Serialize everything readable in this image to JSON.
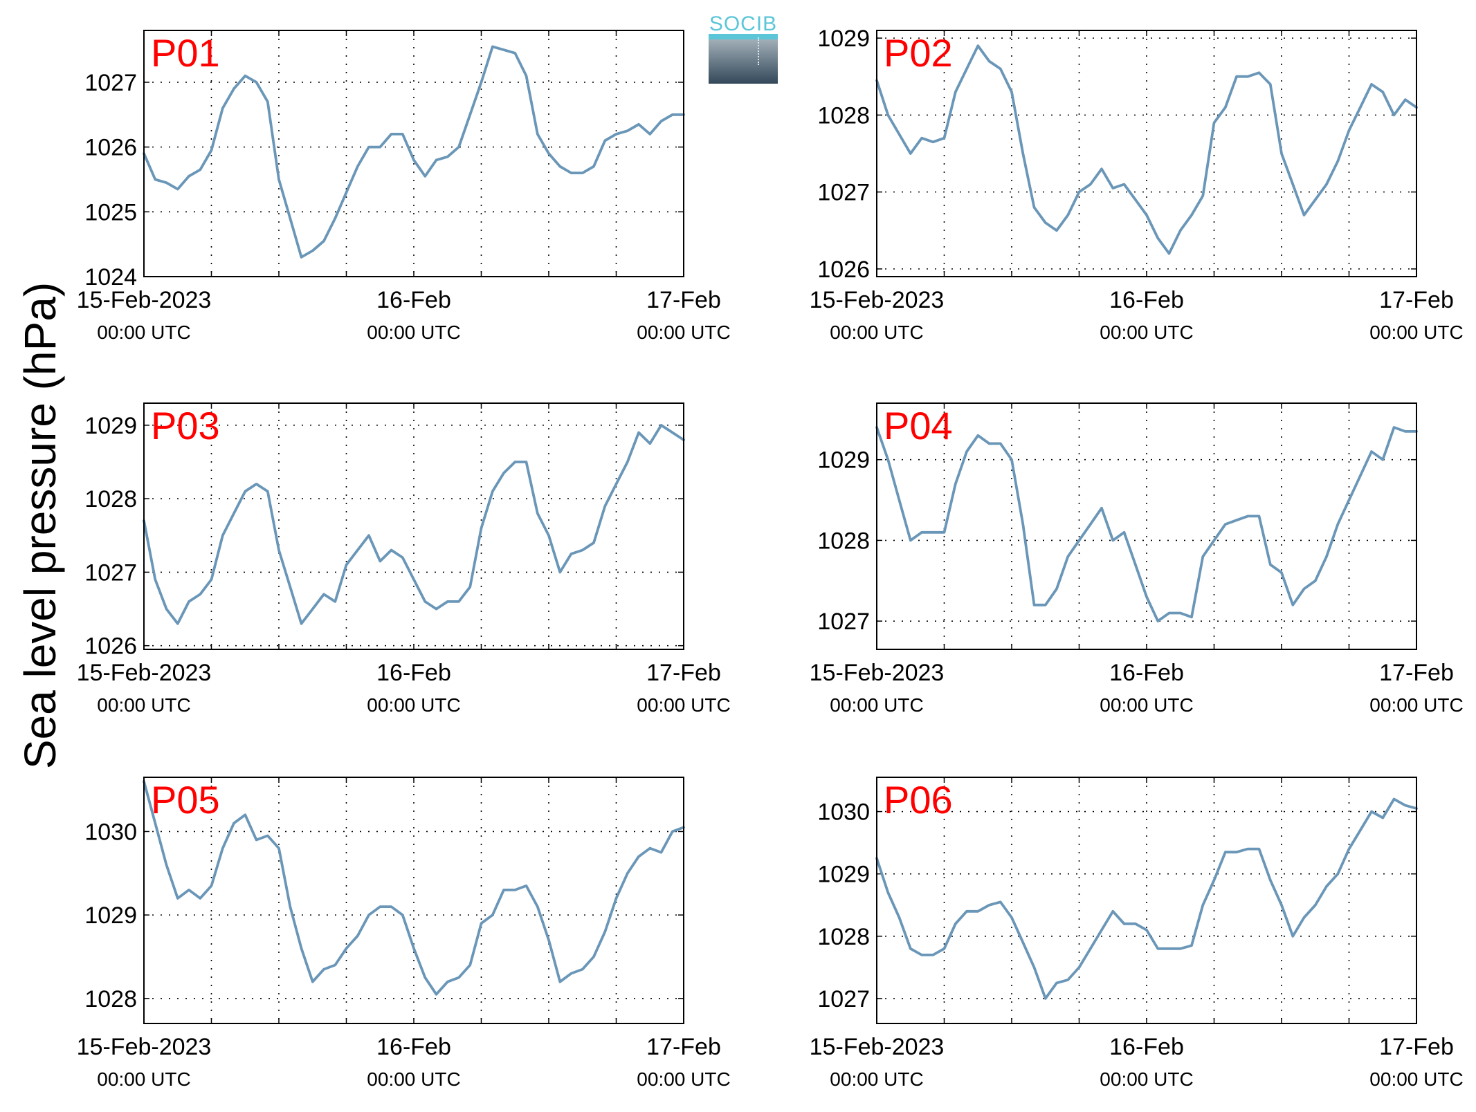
{
  "figure": {
    "ylabel": "Sea level pressure (hPa)",
    "logo_text": "SOCIB",
    "line_color": "#6a96b8",
    "panel_label_color": "#ff0000"
  },
  "chart_data": [
    {
      "type": "line",
      "title": "P01",
      "xlim_hours": [
        0,
        48
      ],
      "xticks": [
        {
          "label": "15-Feb-2023",
          "sub": "00:00 UTC"
        },
        {
          "label": "16-Feb",
          "sub": "00:00 UTC"
        },
        {
          "label": "17-Feb",
          "sub": "00:00 UTC"
        }
      ],
      "ylim": [
        1024,
        1027.8
      ],
      "yticks": [
        1024,
        1025,
        1026,
        1027
      ],
      "x_hours": [
        0,
        1,
        2,
        3,
        4,
        5,
        6,
        7,
        8,
        9,
        10,
        11,
        12,
        13,
        14,
        15,
        16,
        17,
        18,
        19,
        20,
        21,
        22,
        23,
        24,
        25,
        26,
        27,
        28,
        29,
        30,
        31,
        32,
        33,
        34,
        35,
        36,
        37,
        38,
        39,
        40,
        41,
        42,
        43,
        44,
        45,
        46,
        47,
        48
      ],
      "values": [
        1025.9,
        1025.5,
        1025.45,
        1025.35,
        1025.55,
        1025.65,
        1025.95,
        1026.6,
        1026.9,
        1027.1,
        1027.0,
        1026.7,
        1025.5,
        1024.9,
        1024.3,
        1024.4,
        1024.55,
        1024.9,
        1025.3,
        1025.7,
        1026.0,
        1026.0,
        1026.2,
        1026.2,
        1025.8,
        1025.55,
        1025.8,
        1025.85,
        1026.0,
        1026.5,
        1027.0,
        1027.55,
        1027.5,
        1027.45,
        1027.1,
        1026.2,
        1025.9,
        1025.7,
        1025.6,
        1025.6,
        1025.7,
        1026.1,
        1026.2,
        1026.25,
        1026.35,
        1026.2,
        1026.4,
        1026.5,
        1026.5
      ]
    },
    {
      "type": "line",
      "title": "P02",
      "xlim_hours": [
        0,
        48
      ],
      "xticks": [
        {
          "label": "15-Feb-2023",
          "sub": "00:00 UTC"
        },
        {
          "label": "16-Feb",
          "sub": "00:00 UTC"
        },
        {
          "label": "17-Feb",
          "sub": "00:00 UTC"
        }
      ],
      "ylim": [
        1025.9,
        1029.1
      ],
      "yticks": [
        1026,
        1027,
        1028,
        1029
      ],
      "x_hours": [
        0,
        1,
        2,
        3,
        4,
        5,
        6,
        7,
        8,
        9,
        10,
        11,
        12,
        13,
        14,
        15,
        16,
        17,
        18,
        19,
        20,
        21,
        22,
        23,
        24,
        25,
        26,
        27,
        28,
        29,
        30,
        31,
        32,
        33,
        34,
        35,
        36,
        37,
        38,
        39,
        40,
        41,
        42,
        43,
        44,
        45,
        46,
        47,
        48
      ],
      "values": [
        1028.45,
        1028.0,
        1027.75,
        1027.5,
        1027.7,
        1027.65,
        1027.7,
        1028.3,
        1028.6,
        1028.9,
        1028.7,
        1028.6,
        1028.3,
        1027.5,
        1026.8,
        1026.6,
        1026.5,
        1026.7,
        1027.0,
        1027.1,
        1027.3,
        1027.05,
        1027.1,
        1026.9,
        1026.7,
        1026.4,
        1026.2,
        1026.5,
        1026.7,
        1026.95,
        1027.9,
        1028.1,
        1028.5,
        1028.5,
        1028.55,
        1028.4,
        1027.5,
        1027.1,
        1026.7,
        1026.9,
        1027.1,
        1027.4,
        1027.8,
        1028.1,
        1028.4,
        1028.3,
        1028.0,
        1028.2,
        1028.1
      ]
    },
    {
      "type": "line",
      "title": "P03",
      "xlim_hours": [
        0,
        48
      ],
      "xticks": [
        {
          "label": "15-Feb-2023",
          "sub": "00:00 UTC"
        },
        {
          "label": "16-Feb",
          "sub": "00:00 UTC"
        },
        {
          "label": "17-Feb",
          "sub": "00:00 UTC"
        }
      ],
      "ylim": [
        1025.95,
        1029.3
      ],
      "yticks": [
        1026,
        1027,
        1028,
        1029
      ],
      "x_hours": [
        0,
        1,
        2,
        3,
        4,
        5,
        6,
        7,
        8,
        9,
        10,
        11,
        12,
        13,
        14,
        15,
        16,
        17,
        18,
        19,
        20,
        21,
        22,
        23,
        24,
        25,
        26,
        27,
        28,
        29,
        30,
        31,
        32,
        33,
        34,
        35,
        36,
        37,
        38,
        39,
        40,
        41,
        42,
        43,
        44,
        45,
        46,
        47,
        48
      ],
      "values": [
        1027.7,
        1026.9,
        1026.5,
        1026.3,
        1026.6,
        1026.7,
        1026.9,
        1027.5,
        1027.8,
        1028.1,
        1028.2,
        1028.1,
        1027.3,
        1026.8,
        1026.3,
        1026.5,
        1026.7,
        1026.6,
        1027.1,
        1027.3,
        1027.5,
        1027.15,
        1027.3,
        1027.2,
        1026.9,
        1026.6,
        1026.5,
        1026.6,
        1026.6,
        1026.8,
        1027.6,
        1028.1,
        1028.35,
        1028.5,
        1028.5,
        1027.8,
        1027.5,
        1027.0,
        1027.25,
        1027.3,
        1027.4,
        1027.9,
        1028.2,
        1028.5,
        1028.9,
        1028.75,
        1029.0,
        1028.9,
        1028.8
      ]
    },
    {
      "type": "line",
      "title": "P04",
      "xlim_hours": [
        0,
        48
      ],
      "xticks": [
        {
          "label": "15-Feb-2023",
          "sub": "00:00 UTC"
        },
        {
          "label": "16-Feb",
          "sub": "00:00 UTC"
        },
        {
          "label": "17-Feb",
          "sub": "00:00 UTC"
        }
      ],
      "ylim": [
        1026.65,
        1029.7
      ],
      "yticks": [
        1027,
        1028,
        1029
      ],
      "x_hours": [
        0,
        1,
        2,
        3,
        4,
        5,
        6,
        7,
        8,
        9,
        10,
        11,
        12,
        13,
        14,
        15,
        16,
        17,
        18,
        19,
        20,
        21,
        22,
        23,
        24,
        25,
        26,
        27,
        28,
        29,
        30,
        31,
        32,
        33,
        34,
        35,
        36,
        37,
        38,
        39,
        40,
        41,
        42,
        43,
        44,
        45,
        46,
        47,
        48
      ],
      "values": [
        1029.4,
        1029.0,
        1028.5,
        1028.0,
        1028.1,
        1028.1,
        1028.1,
        1028.7,
        1029.1,
        1029.3,
        1029.2,
        1029.2,
        1029.0,
        1028.2,
        1027.2,
        1027.2,
        1027.4,
        1027.8,
        1028.0,
        1028.2,
        1028.4,
        1028.0,
        1028.1,
        1027.7,
        1027.3,
        1027.0,
        1027.1,
        1027.1,
        1027.05,
        1027.8,
        1028.0,
        1028.2,
        1028.25,
        1028.3,
        1028.3,
        1027.7,
        1027.6,
        1027.2,
        1027.4,
        1027.5,
        1027.8,
        1028.2,
        1028.5,
        1028.8,
        1029.1,
        1029.0,
        1029.4,
        1029.35,
        1029.35
      ]
    },
    {
      "type": "line",
      "title": "P05",
      "xlim_hours": [
        0,
        48
      ],
      "xticks": [
        {
          "label": "15-Feb-2023",
          "sub": "00:00 UTC"
        },
        {
          "label": "16-Feb",
          "sub": "00:00 UTC"
        },
        {
          "label": "17-Feb",
          "sub": "00:00 UTC"
        }
      ],
      "ylim": [
        1027.7,
        1030.65
      ],
      "yticks": [
        1028,
        1029,
        1030
      ],
      "x_hours": [
        0,
        1,
        2,
        3,
        4,
        5,
        6,
        7,
        8,
        9,
        10,
        11,
        12,
        13,
        14,
        15,
        16,
        17,
        18,
        19,
        20,
        21,
        22,
        23,
        24,
        25,
        26,
        27,
        28,
        29,
        30,
        31,
        32,
        33,
        34,
        35,
        36,
        37,
        38,
        39,
        40,
        41,
        42,
        43,
        44,
        45,
        46,
        47,
        48
      ],
      "values": [
        1030.6,
        1030.1,
        1029.6,
        1029.2,
        1029.3,
        1029.2,
        1029.35,
        1029.8,
        1030.1,
        1030.2,
        1029.9,
        1029.95,
        1029.8,
        1029.1,
        1028.6,
        1028.2,
        1028.35,
        1028.4,
        1028.6,
        1028.75,
        1029.0,
        1029.1,
        1029.1,
        1029.0,
        1028.6,
        1028.25,
        1028.05,
        1028.2,
        1028.25,
        1028.4,
        1028.9,
        1029.0,
        1029.3,
        1029.3,
        1029.35,
        1029.1,
        1028.7,
        1028.2,
        1028.3,
        1028.35,
        1028.5,
        1028.8,
        1029.2,
        1029.5,
        1029.7,
        1029.8,
        1029.75,
        1030.0,
        1030.05
      ]
    },
    {
      "type": "line",
      "title": "P06",
      "xlim_hours": [
        0,
        48
      ],
      "xticks": [
        {
          "label": "15-Feb-2023",
          "sub": "00:00 UTC"
        },
        {
          "label": "16-Feb",
          "sub": "00:00 UTC"
        },
        {
          "label": "17-Feb",
          "sub": "00:00 UTC"
        }
      ],
      "ylim": [
        1026.6,
        1030.55
      ],
      "yticks": [
        1027,
        1028,
        1029,
        1030
      ],
      "x_hours": [
        0,
        1,
        2,
        3,
        4,
        5,
        6,
        7,
        8,
        9,
        10,
        11,
        12,
        13,
        14,
        15,
        16,
        17,
        18,
        19,
        20,
        21,
        22,
        23,
        24,
        25,
        26,
        27,
        28,
        29,
        30,
        31,
        32,
        33,
        34,
        35,
        36,
        37,
        38,
        39,
        40,
        41,
        42,
        43,
        44,
        45,
        46,
        47,
        48
      ],
      "values": [
        1029.25,
        1028.7,
        1028.3,
        1027.8,
        1027.7,
        1027.7,
        1027.8,
        1028.2,
        1028.4,
        1028.4,
        1028.5,
        1028.55,
        1028.3,
        1027.9,
        1027.5,
        1027.0,
        1027.25,
        1027.3,
        1027.5,
        1027.8,
        1028.1,
        1028.4,
        1028.2,
        1028.2,
        1028.1,
        1027.8,
        1027.8,
        1027.8,
        1027.85,
        1028.5,
        1028.9,
        1029.35,
        1029.35,
        1029.4,
        1029.4,
        1028.9,
        1028.5,
        1028.0,
        1028.3,
        1028.5,
        1028.8,
        1029.0,
        1029.4,
        1029.7,
        1030.0,
        1029.9,
        1030.2,
        1030.1,
        1030.05
      ]
    }
  ]
}
